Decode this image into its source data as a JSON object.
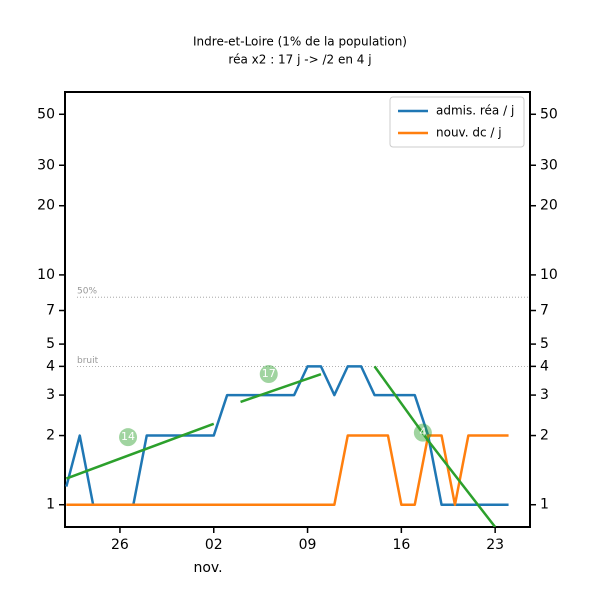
{
  "chart_data": {
    "type": "line",
    "title": "Indre-et-Loire (1% de la population)",
    "subtitle": "réa x2 : 17 j -> /2 en 4 j",
    "xlabel": "nov.",
    "log_y": true,
    "legend": "upper right",
    "xlim": [
      21.9,
      56.6
    ],
    "xticks": [
      {
        "value": 26,
        "label": "26"
      },
      {
        "value": 33,
        "label": "02"
      },
      {
        "value": 40,
        "label": "09"
      },
      {
        "value": 47,
        "label": "16"
      },
      {
        "value": 54,
        "label": "23"
      }
    ],
    "ylim": [
      0.8,
      62.5
    ],
    "yticks": [
      1,
      2,
      3,
      4,
      5,
      7,
      10,
      20,
      30,
      50
    ],
    "x": [
      22,
      23,
      24,
      25,
      26,
      27,
      28,
      29,
      30,
      31,
      32,
      33,
      34,
      35,
      36,
      37,
      38,
      39,
      40,
      41,
      42,
      43,
      44,
      45,
      46,
      47,
      48,
      49,
      50,
      51,
      52,
      53,
      54,
      55
    ],
    "series": [
      {
        "name": "admis. réa / j",
        "color": "#1f77b4",
        "values": [
          1.2,
          2,
          1,
          null,
          null,
          1,
          2,
          2,
          2,
          2,
          2,
          2,
          3,
          3,
          3,
          3,
          3,
          3,
          4,
          4,
          3,
          4,
          4,
          3,
          3,
          3,
          3,
          2,
          1,
          1,
          1,
          1,
          1,
          1
        ]
      },
      {
        "name": "nouv. dc / j",
        "color": "#ff7f0e",
        "values": [
          1,
          1,
          1,
          1,
          1,
          1,
          1,
          1,
          1,
          1,
          1,
          1,
          1,
          1,
          1,
          1,
          1,
          1,
          1,
          1,
          1,
          2,
          2,
          2,
          2,
          1,
          1,
          2,
          2,
          1,
          2,
          2,
          2,
          2
        ]
      }
    ],
    "trends": [
      {
        "color": "#2ca02c",
        "label": "14",
        "x": [
          22,
          33
        ],
        "values": [
          1.3,
          2.25
        ]
      },
      {
        "color": "#2ca02c",
        "label": "17",
        "x": [
          35,
          41
        ],
        "values": [
          2.8,
          3.7
        ]
      },
      {
        "color": "#2ca02c",
        "label": "4",
        "x": [
          45,
          49,
          54
        ],
        "values": [
          4,
          1.9,
          0.8
        ]
      }
    ],
    "reference_lines": [
      {
        "value": 8,
        "label": "50%"
      },
      {
        "value": 4,
        "label": "bruit"
      }
    ]
  }
}
